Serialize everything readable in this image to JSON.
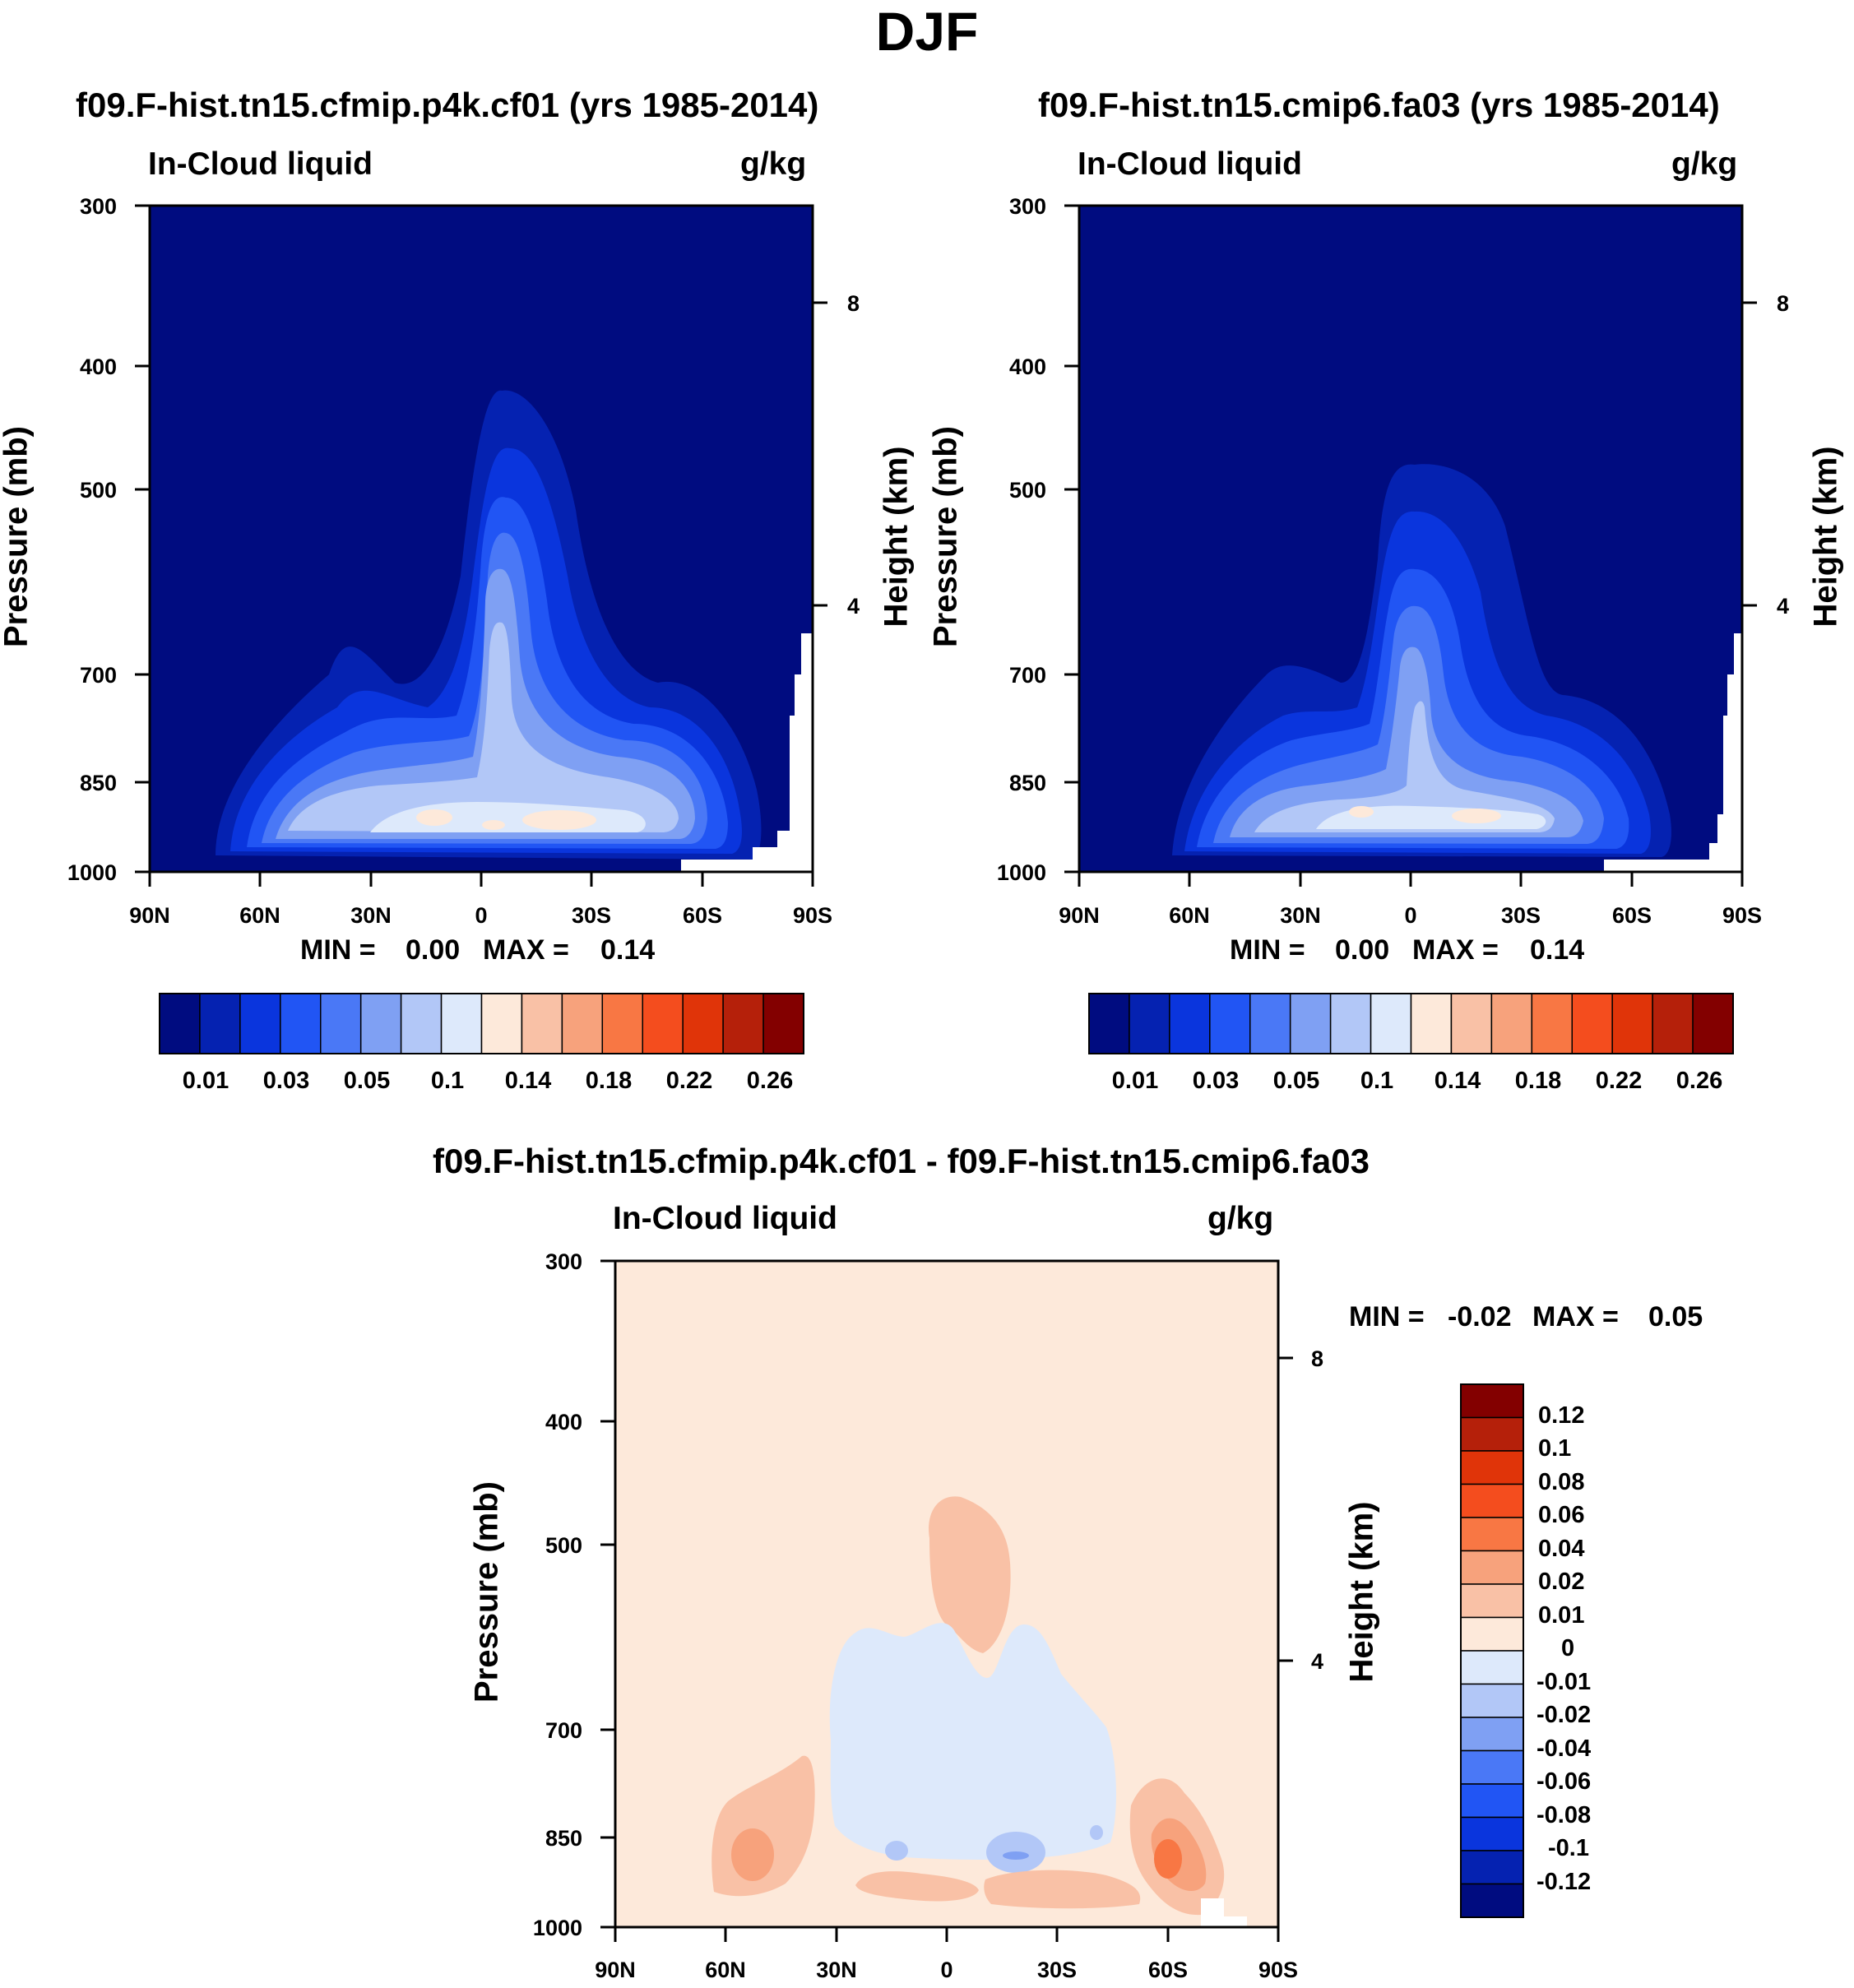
{
  "suptitle": "DJF",
  "chart_data": [
    {
      "type": "contour",
      "title": "f09.F-hist.tn15.cfmip.p4k.cf01 (yrs 1985-2014)",
      "left_label": "In-Cloud liquid",
      "right_label": "g/kg",
      "ylabel": "Pressure (mb)",
      "ylabel_right": "Height (km)",
      "x_ticklabels": [
        "90N",
        "60N",
        "30N",
        "0",
        "30S",
        "60S",
        "90S"
      ],
      "y_ticklabels": [
        "300",
        "400",
        "500",
        "700",
        "850",
        "1000"
      ],
      "y2_ticklabels": [
        "8",
        "4"
      ],
      "ylim": [
        1000,
        300
      ],
      "min_label": "MIN =",
      "min_value": "0.00",
      "max_label": "MAX =",
      "max_value": "0.14",
      "colorbar_levels": [
        "0.01",
        "0.03",
        "0.05",
        "0.1",
        "0.14",
        "0.18",
        "0.22",
        "0.26"
      ],
      "colors": [
        "#000c80",
        "#0522b1",
        "#0a35dd",
        "#2155f4",
        "#4a78f6",
        "#7fa0f3",
        "#b2c7f7",
        "#dde9fb",
        "#fde9da",
        "#f9c1a6",
        "#f7a27c",
        "#f87744",
        "#f44d1e",
        "#e03409",
        "#b5200a",
        "#830000"
      ]
    },
    {
      "type": "contour",
      "title": "f09.F-hist.tn15.cmip6.fa03 (yrs 1985-2014)",
      "left_label": "In-Cloud liquid",
      "right_label": "g/kg",
      "ylabel": "Pressure (mb)",
      "ylabel_right": "Height (km)",
      "x_ticklabels": [
        "90N",
        "60N",
        "30N",
        "0",
        "30S",
        "60S",
        "90S"
      ],
      "y_ticklabels": [
        "300",
        "400",
        "500",
        "700",
        "850",
        "1000"
      ],
      "y2_ticklabels": [
        "8",
        "4"
      ],
      "ylim": [
        1000,
        300
      ],
      "min_label": "MIN =",
      "min_value": "0.00",
      "max_label": "MAX =",
      "max_value": "0.14",
      "colorbar_levels": [
        "0.01",
        "0.03",
        "0.05",
        "0.1",
        "0.14",
        "0.18",
        "0.22",
        "0.26"
      ]
    },
    {
      "type": "contour",
      "title": "f09.F-hist.tn15.cfmip.p4k.cf01 - f09.F-hist.tn15.cmip6.fa03",
      "left_label": "In-Cloud liquid",
      "right_label": "g/kg",
      "ylabel": "Pressure (mb)",
      "ylabel_right": "Height (km)",
      "x_ticklabels": [
        "90N",
        "60N",
        "30N",
        "0",
        "30S",
        "60S",
        "90S"
      ],
      "y_ticklabels": [
        "300",
        "400",
        "500",
        "700",
        "850",
        "1000"
      ],
      "y2_ticklabels": [
        "8",
        "4"
      ],
      "ylim": [
        1000,
        300
      ],
      "min_label": "MIN =",
      "min_value": "-0.02",
      "max_label": "MAX =",
      "max_value": "0.05",
      "colorbar_levels": [
        "0.12",
        "0.1",
        "0.08",
        "0.06",
        "0.04",
        "0.02",
        "0.01",
        "0",
        "-0.01",
        "-0.02",
        "-0.04",
        "-0.06",
        "-0.08",
        "-0.1",
        "-0.12"
      ],
      "colors": [
        "#830000",
        "#b5200a",
        "#e03409",
        "#f44d1e",
        "#f87744",
        "#f7a27c",
        "#f9c1a6",
        "#fde9da",
        "#dde9fb",
        "#b2c7f7",
        "#7fa0f3",
        "#4a78f6",
        "#2155f4",
        "#0a35dd",
        "#0522b1",
        "#000c80"
      ]
    }
  ]
}
